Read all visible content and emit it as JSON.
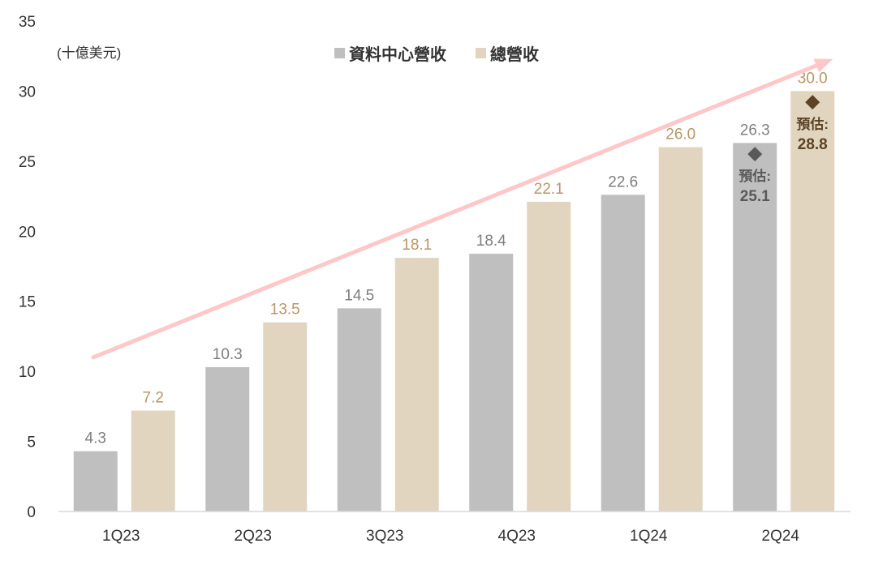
{
  "chart_data": {
    "type": "bar",
    "unit_label": "(十億美元)",
    "categories": [
      "1Q23",
      "2Q23",
      "3Q23",
      "4Q23",
      "1Q24",
      "2Q24"
    ],
    "series": [
      {
        "name": "資料中心營收",
        "values": [
          4.3,
          10.3,
          14.5,
          18.4,
          22.6,
          26.3
        ],
        "labels": [
          "4.3",
          "10.3",
          "14.5",
          "18.4",
          "22.6",
          "26.3"
        ],
        "color": "#bfbfbf",
        "label_color": "#7f7f7f"
      },
      {
        "name": "總營收",
        "values": [
          7.2,
          13.5,
          18.1,
          22.1,
          26.0,
          30.0
        ],
        "labels": [
          "7.2",
          "13.5",
          "18.1",
          "22.1",
          "26.0",
          "30.0"
        ],
        "color": "#e2d5c0",
        "label_color": "#b8966a"
      }
    ],
    "estimates": [
      {
        "series_index": 0,
        "category": "2Q24",
        "label": "預估:",
        "value": 25.1,
        "value_text": "25.1",
        "marker": "diamond",
        "color": "#595959"
      },
      {
        "series_index": 1,
        "category": "2Q24",
        "label": "預估:",
        "value": 28.8,
        "value_text": "28.8",
        "marker": "diamond",
        "color": "#5c4326"
      }
    ],
    "trend_arrow": {
      "from": {
        "category": "1Q23",
        "value": 11.0
      },
      "to": {
        "category": "2Q24",
        "value": 32.3
      },
      "color": "#ffc7c7"
    },
    "yticks": [
      "0",
      "5",
      "10",
      "15",
      "20",
      "25",
      "30",
      "35"
    ],
    "ylim": [
      0,
      35
    ],
    "grid": false,
    "legend_position": "top-center"
  }
}
